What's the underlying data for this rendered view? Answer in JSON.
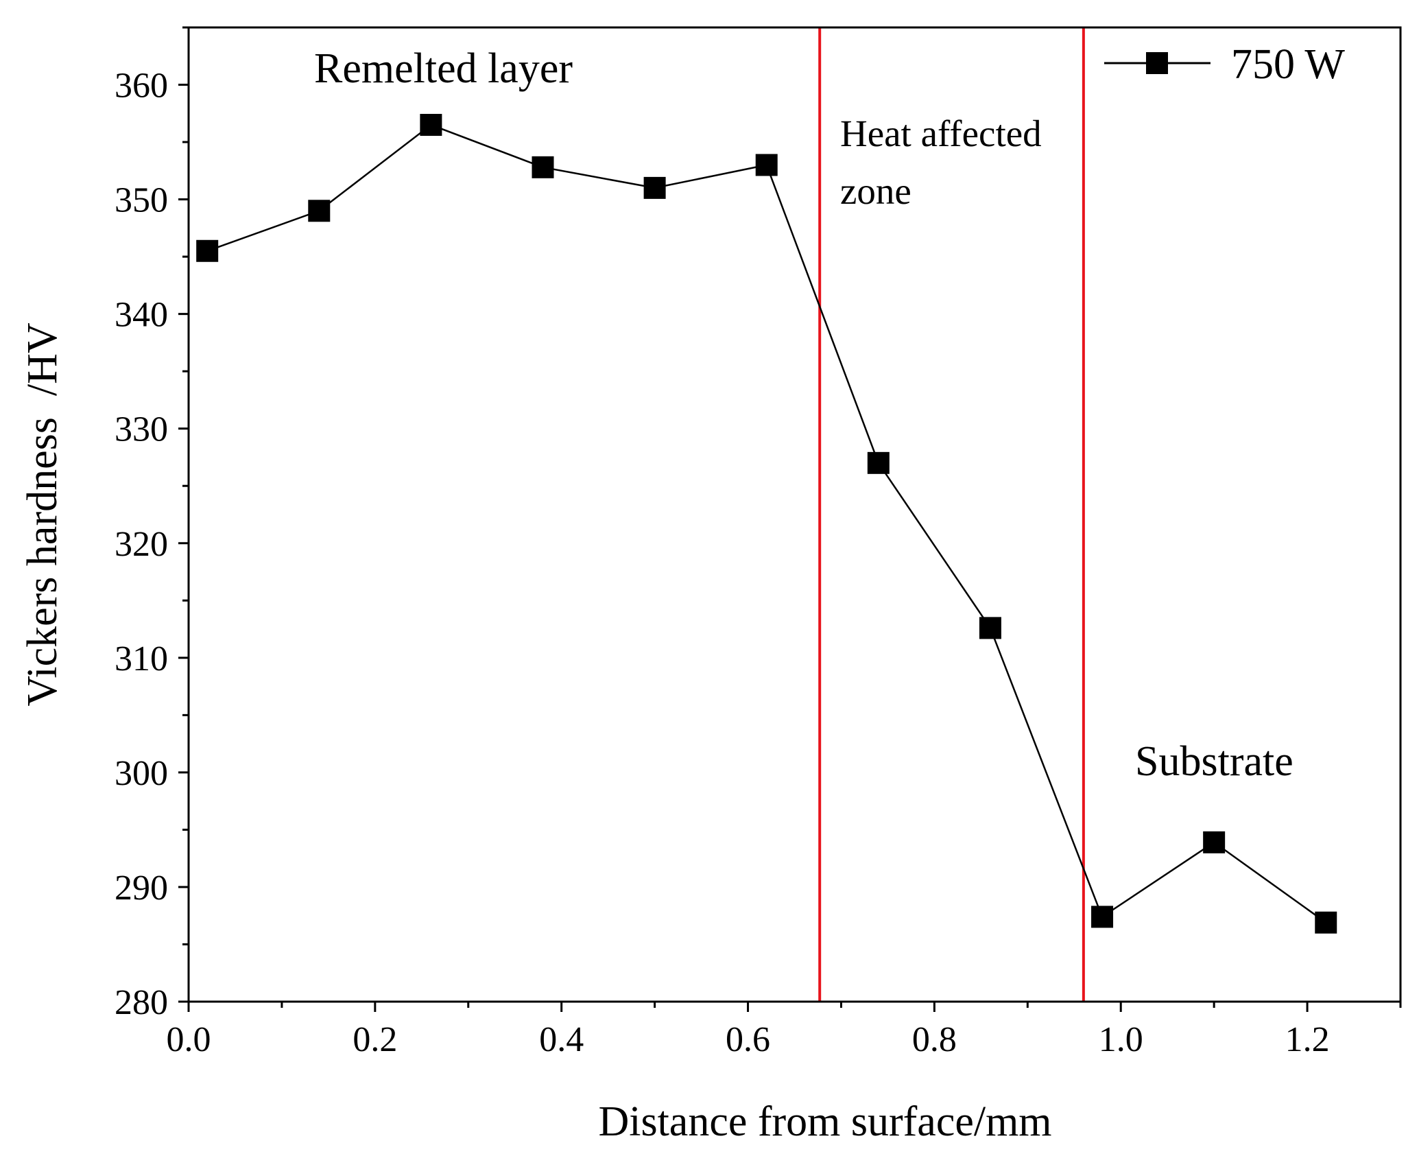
{
  "chart_data": {
    "type": "line",
    "xlabel": "Distance from surface/mm",
    "ylabel": "Vickers hardness  /HV",
    "xlim": [
      0.0,
      1.3
    ],
    "ylim": [
      280,
      365
    ],
    "x_ticks": [
      0.0,
      0.2,
      0.4,
      0.6,
      0.8,
      1.0,
      1.2
    ],
    "x_tick_labels": [
      "0.0",
      "0.2",
      "0.4",
      "0.6",
      "0.8",
      "1.0",
      "1.2"
    ],
    "y_ticks": [
      280,
      290,
      300,
      310,
      320,
      330,
      340,
      350,
      360
    ],
    "y_tick_labels": [
      "280",
      "290",
      "300",
      "310",
      "320",
      "330",
      "340",
      "350",
      "360"
    ],
    "grid": false,
    "legend_position": "top-right",
    "series": [
      {
        "name": "750 W",
        "marker": "square",
        "color": "#000000",
        "x": [
          0.02,
          0.14,
          0.26,
          0.38,
          0.5,
          0.62,
          0.74,
          0.86,
          0.98,
          1.1,
          1.22
        ],
        "values": [
          345.5,
          349.0,
          356.5,
          352.8,
          351.0,
          353.0,
          327.0,
          312.6,
          287.4,
          293.9,
          286.9
        ]
      }
    ],
    "boundary_lines": {
      "color": "#e8141c",
      "x": [
        0.677,
        0.96
      ]
    },
    "annotations": {
      "remelted": "Remelted layer",
      "haz_line1": "Heat affected",
      "haz_line2": "zone",
      "substrate": "Substrate"
    }
  }
}
